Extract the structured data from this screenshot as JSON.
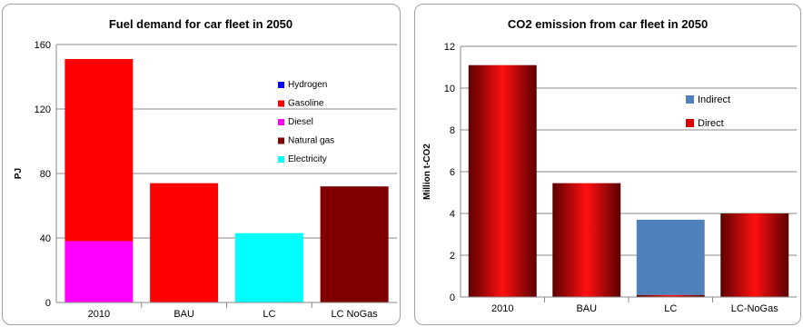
{
  "chart_data": [
    {
      "type": "bar",
      "stacked": true,
      "title": "Fuel demand for car fleet in 2050",
      "ylabel": "PJ",
      "xlabel": "",
      "ylim": [
        0,
        160
      ],
      "yticks": [
        "0",
        "40",
        "80",
        "120",
        "160"
      ],
      "grid": true,
      "legend_position": "top-right",
      "categories": [
        "2010",
        "BAU",
        "LC",
        "LC NoGas"
      ],
      "series": [
        {
          "name": "Hydrogen",
          "color": "#0000ff",
          "values": [
            0,
            0,
            0,
            0
          ]
        },
        {
          "name": "Gasoline",
          "color": "#ff0000",
          "values": [
            113,
            74,
            0,
            0
          ]
        },
        {
          "name": "Diesel",
          "color": "#ff00ff",
          "values": [
            38,
            0,
            0,
            0
          ]
        },
        {
          "name": "Natural gas",
          "color": "#7f0000",
          "values": [
            0,
            0,
            0,
            72
          ]
        },
        {
          "name": "Electricity",
          "color": "#00ffff",
          "values": [
            0,
            0,
            43,
            0
          ]
        }
      ],
      "stack_order": [
        "Diesel",
        "Gasoline",
        "Electricity",
        "Natural gas",
        "Hydrogen"
      ]
    },
    {
      "type": "bar",
      "stacked": true,
      "title": "CO2 emission from car fleet in 2050",
      "ylabel": "Million t-CO2",
      "xlabel": "",
      "ylim": [
        0,
        12
      ],
      "yticks": [
        "0",
        "2",
        "4",
        "6",
        "8",
        "10",
        "12"
      ],
      "grid": true,
      "legend_position": "right",
      "categories": [
        "2010",
        "BAU",
        "LC",
        "LC-NoGas"
      ],
      "series": [
        {
          "name": "Indirect",
          "color": "#4f81bd",
          "values": [
            0,
            0,
            3.6,
            0
          ]
        },
        {
          "name": "Direct",
          "color": "#e00000",
          "values": [
            11.1,
            5.45,
            0.1,
            4.0
          ]
        }
      ],
      "stack_order": [
        "Direct",
        "Indirect"
      ]
    }
  ]
}
